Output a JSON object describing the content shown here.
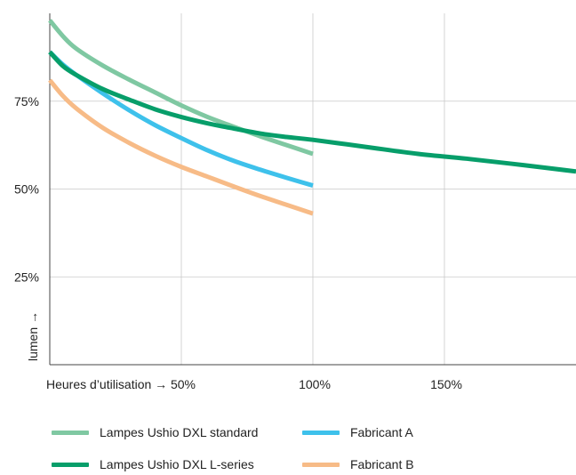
{
  "chart_data": {
    "type": "line",
    "title": "",
    "xlabel": "Heures d’utilisation →",
    "ylabel": "lumen →",
    "xlim": [
      0,
      200
    ],
    "ylim": [
      0,
      100
    ],
    "x_ticks": [
      {
        "value": 50,
        "label": "50%"
      },
      {
        "value": 100,
        "label": "100%"
      },
      {
        "value": 150,
        "label": "150%"
      }
    ],
    "y_ticks": [
      {
        "value": 25,
        "label": "25%"
      },
      {
        "value": 50,
        "label": "50%"
      },
      {
        "value": 75,
        "label": "75%"
      }
    ],
    "grid": true,
    "legend_position": "bottom",
    "series": [
      {
        "name": "Lampes Ushio DXL standard",
        "color": "#7fc8a2",
        "x": [
          0,
          5,
          10,
          20,
          30,
          40,
          50,
          60,
          70,
          80,
          90,
          100
        ],
        "values": [
          98,
          93.5,
          90,
          85.2,
          81.2,
          77.5,
          73.8,
          70.5,
          67.7,
          65,
          62.5,
          60
        ]
      },
      {
        "name": "Lampes Ushio DXL L-series",
        "color": "#079e6a",
        "x": [
          0,
          5,
          10,
          20,
          30,
          40,
          50,
          60,
          70,
          80,
          90,
          100,
          120,
          140,
          160,
          180,
          200
        ],
        "values": [
          89,
          85,
          82.5,
          78.5,
          75.5,
          72.7,
          70.5,
          68.7,
          67.2,
          65.8,
          64.8,
          64,
          62,
          60,
          58.5,
          56.8,
          55
        ]
      },
      {
        "name": "Fabricant A",
        "color": "#3ec1eb",
        "x": [
          0,
          5,
          10,
          20,
          30,
          40,
          50,
          60,
          70,
          80,
          90,
          100
        ],
        "values": [
          89,
          85.4,
          82.5,
          77.3,
          72.5,
          68.2,
          64.5,
          61,
          58,
          55.5,
          53.2,
          51
        ]
      },
      {
        "name": "Fabricant B",
        "color": "#f7bb87",
        "x": [
          0,
          5,
          10,
          20,
          30,
          40,
          50,
          60,
          70,
          80,
          90,
          100
        ],
        "values": [
          81,
          76.5,
          73,
          67.5,
          63.2,
          59.5,
          56.3,
          53.5,
          50.7,
          48,
          45.5,
          43
        ]
      }
    ]
  },
  "legend": {
    "items": [
      {
        "label": "Lampes Ushio DXL standard",
        "color": "#7fc8a2"
      },
      {
        "label": "Fabricant A",
        "color": "#3ec1eb"
      },
      {
        "label": "Lampes Ushio DXL L-series",
        "color": "#079e6a"
      },
      {
        "label": "Fabricant B",
        "color": "#f7bb87"
      }
    ]
  }
}
